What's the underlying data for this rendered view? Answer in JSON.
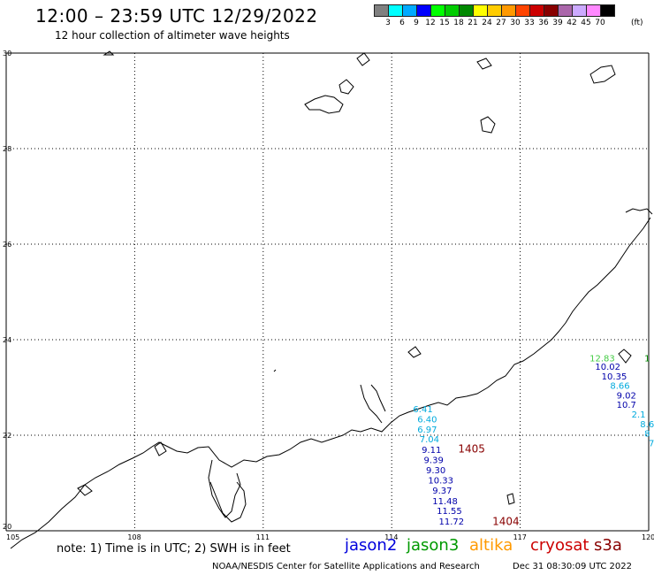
{
  "header": {
    "title": "12:00 – 23:59 UTC 12/29/2022",
    "subtitle": "12 hour collection of altimeter wave heights"
  },
  "colorbar": {
    "swatches": [
      "#808080",
      "#00ffff",
      "#00aaff",
      "#0000ff",
      "#00ff00",
      "#00cc00",
      "#008800",
      "#ffff00",
      "#ffcc00",
      "#ff9900",
      "#ff4400",
      "#cc0000",
      "#880000",
      "#aa66aa",
      "#ccaaff",
      "#ff88ff",
      "#000000"
    ],
    "labels": [
      "3",
      "6",
      "9",
      "12",
      "15",
      "18",
      "21",
      "24",
      "27",
      "30",
      "33",
      "36",
      "39",
      "42",
      "45",
      "70"
    ],
    "unit": "(ft)"
  },
  "map": {
    "lon_ticks": [
      "105",
      "108",
      "111",
      "114",
      "117",
      "120"
    ],
    "lat_ticks": [
      "30",
      "28",
      "26",
      "24",
      "22",
      "20"
    ],
    "lon_range": [
      105,
      120
    ],
    "lat_range": [
      20,
      30
    ],
    "gridlines": true
  },
  "observations": [
    {
      "text": "6.41",
      "lon": 114.5,
      "lat": 22.48,
      "color": "#00aadd"
    },
    {
      "text": "6.40",
      "lon": 114.6,
      "lat": 22.27,
      "color": "#00aadd"
    },
    {
      "text": "6.97",
      "lon": 114.6,
      "lat": 22.06,
      "color": "#00aadd"
    },
    {
      "text": "7.04",
      "lon": 114.65,
      "lat": 21.85,
      "color": "#00aadd"
    },
    {
      "text": "9.11",
      "lon": 114.7,
      "lat": 21.63,
      "color": "#0000aa"
    },
    {
      "text": "9.39",
      "lon": 114.75,
      "lat": 21.42,
      "color": "#0000aa"
    },
    {
      "text": "9.30",
      "lon": 114.8,
      "lat": 21.2,
      "color": "#0000aa"
    },
    {
      "text": "10.33",
      "lon": 114.85,
      "lat": 20.99,
      "color": "#0000aa"
    },
    {
      "text": "9.37",
      "lon": 114.95,
      "lat": 20.78,
      "color": "#0000aa"
    },
    {
      "text": "11.48",
      "lon": 114.95,
      "lat": 20.56,
      "color": "#0000aa"
    },
    {
      "text": "11.55",
      "lon": 115.05,
      "lat": 20.35,
      "color": "#0000aa"
    },
    {
      "text": "11.72",
      "lon": 115.1,
      "lat": 20.13,
      "color": "#0000aa"
    },
    {
      "text": "1405",
      "lon": 115.55,
      "lat": 21.64,
      "color": "#880000"
    },
    {
      "text": "1404",
      "lon": 116.35,
      "lat": 20.12,
      "color": "#880000"
    },
    {
      "text": "12.83",
      "lon": 118.62,
      "lat": 23.55,
      "color": "#44cc44"
    },
    {
      "text": "1",
      "lon": 119.9,
      "lat": 23.55,
      "color": "#008800"
    },
    {
      "text": "10.02",
      "lon": 118.75,
      "lat": 23.37,
      "color": "#0000aa"
    },
    {
      "text": "10.35",
      "lon": 118.9,
      "lat": 23.17,
      "color": "#0000aa"
    },
    {
      "text": "8.66",
      "lon": 119.1,
      "lat": 22.97,
      "color": "#00aadd"
    },
    {
      "text": "9.02",
      "lon": 119.25,
      "lat": 22.77,
      "color": "#0000aa"
    },
    {
      "text": "10.7",
      "lon": 119.25,
      "lat": 22.57,
      "color": "#0000aa"
    },
    {
      "text": "2.1",
      "lon": 119.6,
      "lat": 22.37,
      "color": "#00aadd"
    },
    {
      "text": "8.6",
      "lon": 119.8,
      "lat": 22.17,
      "color": "#00aadd"
    },
    {
      "text": "8",
      "lon": 119.9,
      "lat": 21.97,
      "color": "#00aadd"
    },
    {
      "text": "7",
      "lon": 120.0,
      "lat": 21.77,
      "color": "#00aadd"
    }
  ],
  "footer": {
    "note": "note: 1) Time is in UTC; 2) SWH is in feet",
    "satellites": [
      {
        "name": "jason2",
        "color": "#0000dd"
      },
      {
        "name": "jason3",
        "color": "#009900"
      },
      {
        "name": "altika",
        "color": "#ff9900"
      },
      {
        "name": "cryosat",
        "color": "#cc0000"
      },
      {
        "name": "s3a",
        "color": "#880000"
      }
    ],
    "credit": "NOAA/NESDIS Center for Satellite Applications and Research",
    "timestamp": "Dec 31 08:30:09 UTC 2022"
  }
}
